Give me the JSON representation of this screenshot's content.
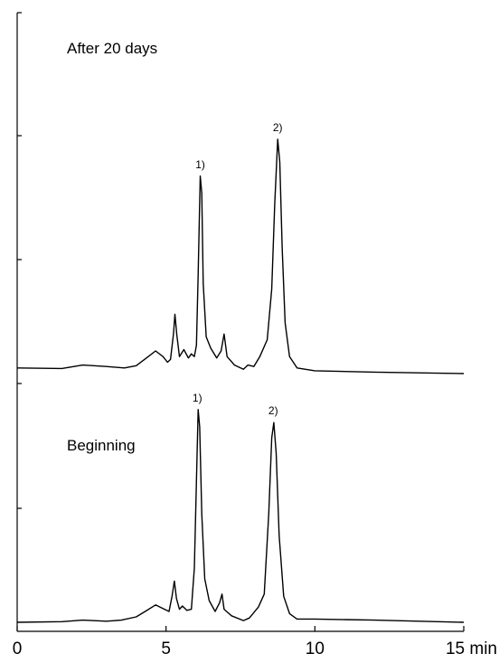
{
  "chart_data": {
    "type": "line",
    "xlabel": "",
    "ylabel": "",
    "x_unit": "min",
    "xlim": [
      0,
      15
    ],
    "x_ticks": [
      0,
      5,
      10,
      15
    ],
    "x_tick_labels": [
      "0",
      "5",
      "10",
      "15 min"
    ],
    "grid": false,
    "legend": "none",
    "panels": [
      {
        "label": "After 20 days",
        "peak_labels": [
          {
            "text": "1)",
            "x": 6.15
          },
          {
            "text": "2)",
            "x": 8.75
          }
        ],
        "points": [
          [
            0,
            0.02
          ],
          [
            1.5,
            0.018
          ],
          [
            2.2,
            0.03
          ],
          [
            3.0,
            0.025
          ],
          [
            3.6,
            0.02
          ],
          [
            4.0,
            0.028
          ],
          [
            4.4,
            0.06
          ],
          [
            4.65,
            0.08
          ],
          [
            4.9,
            0.06
          ],
          [
            5.05,
            0.04
          ],
          [
            5.15,
            0.05
          ],
          [
            5.25,
            0.14
          ],
          [
            5.3,
            0.21
          ],
          [
            5.36,
            0.14
          ],
          [
            5.45,
            0.06
          ],
          [
            5.6,
            0.085
          ],
          [
            5.75,
            0.055
          ],
          [
            5.85,
            0.07
          ],
          [
            5.95,
            0.06
          ],
          [
            6.02,
            0.1
          ],
          [
            6.08,
            0.35
          ],
          [
            6.15,
            0.7
          ],
          [
            6.2,
            0.64
          ],
          [
            6.25,
            0.32
          ],
          [
            6.35,
            0.13
          ],
          [
            6.5,
            0.09
          ],
          [
            6.7,
            0.055
          ],
          [
            6.85,
            0.08
          ],
          [
            6.95,
            0.14
          ],
          [
            7.05,
            0.06
          ],
          [
            7.3,
            0.03
          ],
          [
            7.6,
            0.015
          ],
          [
            7.75,
            0.03
          ],
          [
            7.95,
            0.025
          ],
          [
            8.15,
            0.06
          ],
          [
            8.4,
            0.12
          ],
          [
            8.55,
            0.3
          ],
          [
            8.65,
            0.6
          ],
          [
            8.75,
            0.83
          ],
          [
            8.82,
            0.75
          ],
          [
            8.9,
            0.45
          ],
          [
            9.0,
            0.18
          ],
          [
            9.15,
            0.06
          ],
          [
            9.4,
            0.02
          ],
          [
            10,
            0.01
          ],
          [
            12,
            0.005
          ],
          [
            15,
            0.0
          ]
        ]
      },
      {
        "label": "Beginning",
        "peak_labels": [
          {
            "text": "1)",
            "x": 6.05
          },
          {
            "text": "2)",
            "x": 8.6
          }
        ],
        "points": [
          [
            0,
            0.0
          ],
          [
            1.5,
            0.003
          ],
          [
            2.2,
            0.01
          ],
          [
            3.0,
            0.005
          ],
          [
            3.5,
            0.01
          ],
          [
            4.0,
            0.025
          ],
          [
            4.3,
            0.05
          ],
          [
            4.65,
            0.08
          ],
          [
            4.95,
            0.06
          ],
          [
            5.1,
            0.05
          ],
          [
            5.2,
            0.12
          ],
          [
            5.28,
            0.19
          ],
          [
            5.35,
            0.11
          ],
          [
            5.45,
            0.06
          ],
          [
            5.55,
            0.075
          ],
          [
            5.7,
            0.055
          ],
          [
            5.85,
            0.06
          ],
          [
            5.95,
            0.25
          ],
          [
            6.02,
            0.65
          ],
          [
            6.08,
            0.98
          ],
          [
            6.13,
            0.9
          ],
          [
            6.2,
            0.5
          ],
          [
            6.3,
            0.2
          ],
          [
            6.45,
            0.1
          ],
          [
            6.65,
            0.05
          ],
          [
            6.8,
            0.09
          ],
          [
            6.88,
            0.13
          ],
          [
            6.95,
            0.06
          ],
          [
            7.2,
            0.03
          ],
          [
            7.6,
            0.008
          ],
          [
            7.8,
            0.02
          ],
          [
            8.1,
            0.07
          ],
          [
            8.3,
            0.13
          ],
          [
            8.45,
            0.5
          ],
          [
            8.55,
            0.85
          ],
          [
            8.62,
            0.92
          ],
          [
            8.7,
            0.78
          ],
          [
            8.8,
            0.4
          ],
          [
            8.95,
            0.12
          ],
          [
            9.15,
            0.04
          ],
          [
            9.4,
            0.015
          ],
          [
            10,
            0.015
          ],
          [
            12,
            0.01
          ],
          [
            15,
            0.0
          ]
        ]
      }
    ]
  }
}
